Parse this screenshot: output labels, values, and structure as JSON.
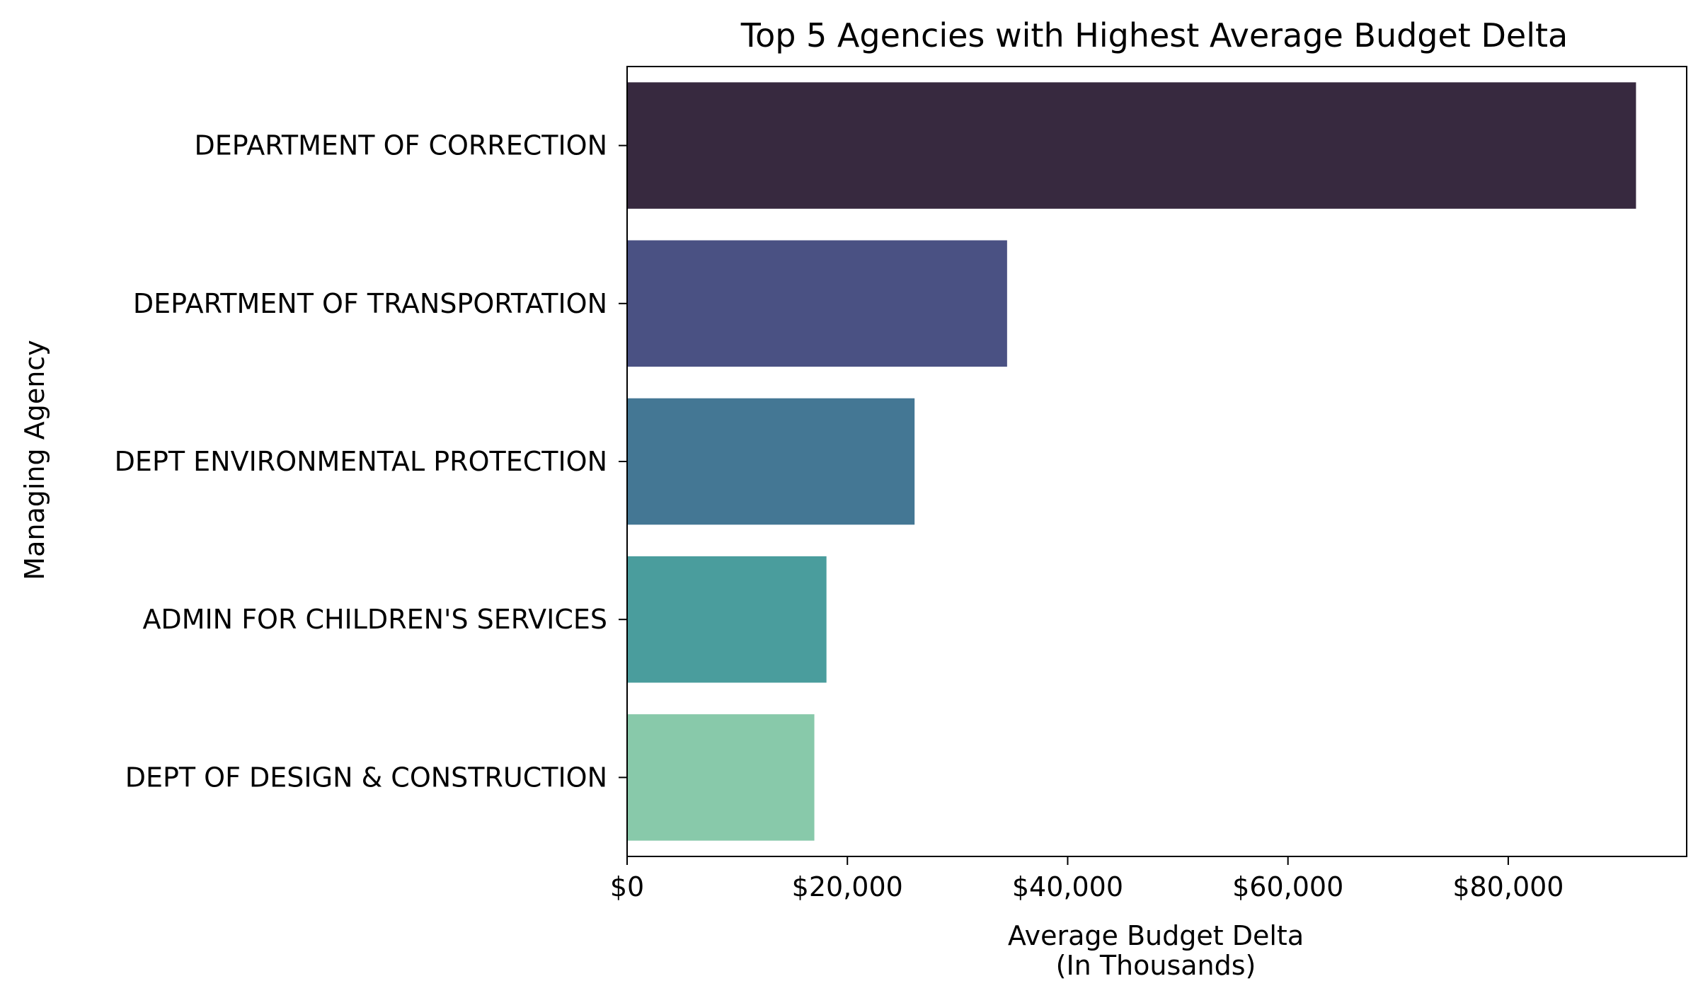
{
  "chart_data": {
    "type": "bar",
    "orientation": "horizontal",
    "title": "Top 5 Agencies with Highest Average Budget Delta",
    "xlabel_line1": "Average Budget Delta",
    "xlabel_line2": "(In Thousands)",
    "ylabel": "Managing Agency",
    "categories": [
      "DEPARTMENT OF CORRECTION",
      "DEPARTMENT OF TRANSPORTATION",
      "DEPT ENVIRONMENTAL PROTECTION",
      "ADMIN FOR CHILDREN'S SERVICES",
      "DEPT OF DESIGN & CONSTRUCTION"
    ],
    "values": [
      91600,
      34500,
      26100,
      18100,
      17000
    ],
    "colors": [
      "#37293f",
      "#4a5183",
      "#447794",
      "#4a9d9d",
      "#88c9aa"
    ],
    "xlim": [
      0,
      96200
    ],
    "xticks": [
      0,
      20000,
      40000,
      60000,
      80000
    ],
    "xtick_labels": [
      "$0",
      "$20,000",
      "$40,000",
      "$60,000",
      "$80,000"
    ],
    "grid": false,
    "legend": "none"
  }
}
